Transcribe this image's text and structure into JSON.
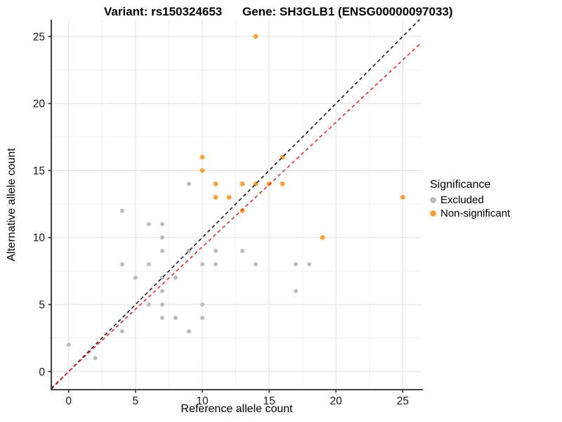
{
  "title": {
    "variant": "Variant: rs150324653",
    "gene": "Gene: SH3GLB1 (ENSG00000097033)"
  },
  "chart_data": {
    "type": "scatter",
    "xlabel": "Reference allele count",
    "ylabel": "Alternative allele count",
    "xlim": [
      -1.3,
      26.4
    ],
    "ylim": [
      -1.35,
      26.25
    ],
    "xticks": [
      0,
      5,
      10,
      15,
      20,
      25
    ],
    "yticks": [
      0,
      5,
      10,
      15,
      20,
      25
    ],
    "grid": "major-and-minor",
    "colors": {
      "excluded": "#BDBDBD",
      "non_significant": "#F8A33C",
      "identity_line": "#1A1A1A",
      "fit_line": "#E82C2C",
      "axis": "#2B2B2B",
      "grid_major": "#E4E4E4",
      "grid_minor": "#EFEFEF"
    },
    "legend": {
      "title": "Significance",
      "position": "right",
      "entries": [
        {
          "label": "Excluded",
          "color": "#BDBDBD"
        },
        {
          "label": "Non-significant",
          "color": "#F8A33C"
        }
      ]
    },
    "series": [
      {
        "name": "Excluded",
        "color": "#BDBDBD",
        "points": [
          [
            0,
            2
          ],
          [
            2,
            1
          ],
          [
            4,
            3
          ],
          [
            4,
            8
          ],
          [
            4,
            12
          ],
          [
            5,
            7
          ],
          [
            6,
            5
          ],
          [
            6,
            8
          ],
          [
            6,
            11
          ],
          [
            7,
            4
          ],
          [
            7,
            5
          ],
          [
            7,
            6
          ],
          [
            7,
            7
          ],
          [
            7,
            9
          ],
          [
            7,
            10
          ],
          [
            7,
            11
          ],
          [
            8,
            4
          ],
          [
            8,
            7
          ],
          [
            9,
            3
          ],
          [
            9,
            9
          ],
          [
            9,
            14
          ],
          [
            10,
            4
          ],
          [
            10,
            5
          ],
          [
            10,
            8
          ],
          [
            11,
            8
          ],
          [
            11,
            9
          ],
          [
            13,
            9
          ],
          [
            14,
            8
          ],
          [
            17,
            6
          ],
          [
            17,
            8
          ],
          [
            18,
            8
          ]
        ]
      },
      {
        "name": "Non-significant",
        "color": "#F8A33C",
        "points": [
          [
            10,
            15
          ],
          [
            10,
            16
          ],
          [
            11,
            13
          ],
          [
            11,
            14
          ],
          [
            12,
            13
          ],
          [
            13,
            12
          ],
          [
            13,
            14
          ],
          [
            14,
            14
          ],
          [
            14,
            25
          ],
          [
            15,
            14
          ],
          [
            16,
            14
          ],
          [
            16,
            16
          ],
          [
            19,
            10
          ],
          [
            25,
            13
          ]
        ]
      }
    ],
    "lines": [
      {
        "name": "identity",
        "color": "#1A1A1A",
        "dash": "5,4",
        "slope": 1,
        "intercept": 0
      },
      {
        "name": "fit",
        "color": "#E82C2C",
        "dash": "5,4",
        "slope": 0.93,
        "intercept": 0
      }
    ]
  }
}
